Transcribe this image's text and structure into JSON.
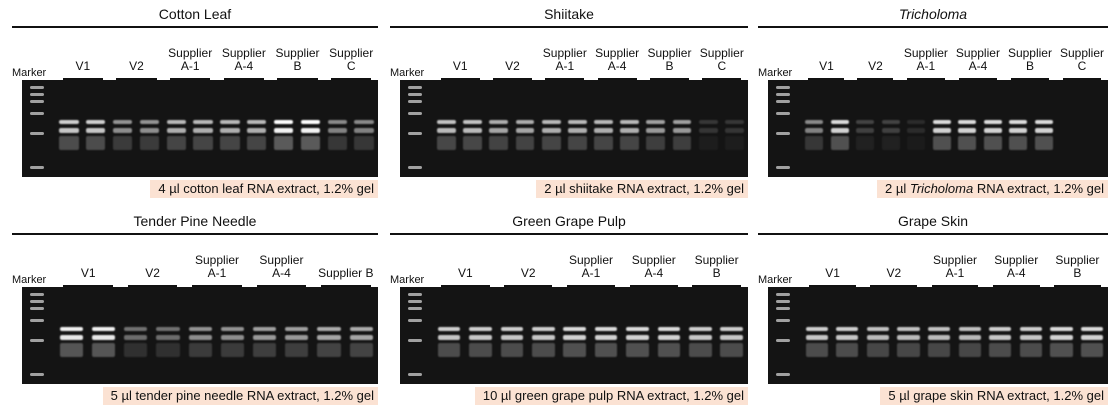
{
  "colors": {
    "caption_bg": "#fbe2d3",
    "gel_bg": "#141414",
    "band": "#ffffff"
  },
  "marker_label": "Marker",
  "panels": [
    {
      "title": "Cotton Leaf",
      "italic_title": false,
      "groups": [
        "V1",
        "V2",
        "Supplier\nA-1",
        "Supplier\nA-4",
        "Supplier\nB",
        "Supplier C"
      ],
      "caption": {
        "pre": "4 µl cotton leaf RNA extract, 1.2% gel",
        "italic": "",
        "post": ""
      },
      "lane_intensity": [
        0.8,
        0.8,
        0.55,
        0.55,
        0.7,
        0.7,
        0.7,
        0.7,
        1,
        1,
        0.5,
        0.5
      ]
    },
    {
      "title": "Shiitake",
      "italic_title": false,
      "groups": [
        "V1",
        "V2",
        "Supplier\nA-1",
        "Supplier\nA-4",
        "Supplier\nB",
        "Supplier C"
      ],
      "caption": {
        "pre": "2 µl shiitake RNA extract, 1.2% gel",
        "italic": "",
        "post": ""
      },
      "lane_intensity": [
        0.75,
        0.75,
        0.65,
        0.65,
        0.7,
        0.7,
        0.7,
        0.7,
        0.6,
        0.6,
        0.15,
        0.15
      ]
    },
    {
      "title": "Tricholoma",
      "italic_title": true,
      "groups": [
        "V1",
        "V2",
        "Supplier\nA-1",
        "Supplier\nA-4",
        "Supplier\nB",
        "Supplier\nC"
      ],
      "caption": {
        "pre": "2 µl ",
        "italic": "Tricholoma",
        "post": " RNA extract, 1.2% gel"
      },
      "lane_intensity": [
        0.5,
        0.85,
        0.2,
        0.2,
        0.1,
        0.85,
        0.85,
        0.85,
        0.85,
        0.85,
        0,
        0
      ]
    },
    {
      "title": "Tender Pine Needle",
      "italic_title": false,
      "groups": [
        "V1",
        "V2",
        "Supplier\nA-1",
        "Supplier\nA-4",
        "Supplier B"
      ],
      "caption": {
        "pre": "5 µl tender pine needle RNA extract, 1.2% gel",
        "italic": "",
        "post": ""
      },
      "lane_intensity": [
        0.95,
        0.95,
        0.4,
        0.4,
        0.55,
        0.55,
        0.6,
        0.6,
        0.65,
        0.65
      ]
    },
    {
      "title": "Green Grape Pulp",
      "italic_title": false,
      "groups": [
        "V1",
        "V2",
        "Supplier\nA-1",
        "Supplier\nA-4",
        "Supplier\nB"
      ],
      "caption": {
        "pre": "10 µl green grape pulp RNA extract, 1.2% gel",
        "italic": "",
        "post": ""
      },
      "lane_intensity": [
        0.8,
        0.8,
        0.8,
        0.8,
        0.85,
        0.85,
        0.85,
        0.85,
        0.8,
        0.8
      ]
    },
    {
      "title": "Grape Skin",
      "italic_title": false,
      "groups": [
        "V1",
        "V2",
        "Supplier\nA-1",
        "Supplier\nA-4",
        "Supplier\nB"
      ],
      "caption": {
        "pre": "5 µl grape skin RNA extract, 1.2% gel",
        "italic": "",
        "post": ""
      },
      "lane_intensity": [
        0.8,
        0.8,
        0.75,
        0.75,
        0.75,
        0.75,
        0.8,
        0.8,
        0.85,
        0.85
      ]
    }
  ]
}
